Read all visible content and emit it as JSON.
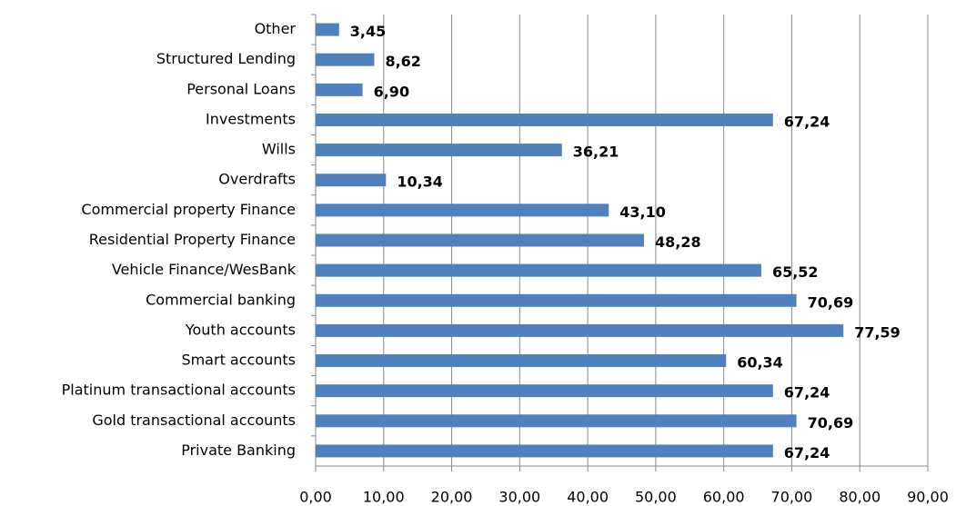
{
  "chart_data": {
    "type": "bar",
    "orientation": "horizontal",
    "categories": [
      "Other",
      "Structured Lending",
      "Personal Loans",
      "Investments",
      "Wills",
      "Overdrafts",
      "Commercial property Finance",
      "Residential Property Finance",
      "Vehicle Finance/WesBank",
      "Commercial banking",
      "Youth accounts",
      "Smart accounts",
      "Platinum transactional accounts",
      "Gold transactional accounts",
      "Private Banking"
    ],
    "values": [
      3.45,
      8.62,
      6.9,
      67.24,
      36.21,
      10.34,
      43.1,
      48.28,
      65.52,
      70.69,
      77.59,
      60.34,
      67.24,
      70.69,
      67.24
    ],
    "value_labels": [
      "3,45",
      "8,62",
      "6,90",
      "67,24",
      "36,21",
      "10,34",
      "43,10",
      "48,28",
      "65,52",
      "70,69",
      "77,59",
      "60,34",
      "67,24",
      "70,69",
      "67,24"
    ],
    "color": "#4f81bd",
    "xlim": [
      0,
      90
    ],
    "xticks": [
      {
        "value": 0,
        "label": "0,00"
      },
      {
        "value": 10,
        "label": "10,00"
      },
      {
        "value": 20,
        "label": "20,00"
      },
      {
        "value": 30,
        "label": "30,00"
      },
      {
        "value": 40,
        "label": "40,00"
      },
      {
        "value": 50,
        "label": "50,00"
      },
      {
        "value": 60,
        "label": "60,00"
      },
      {
        "value": 70,
        "label": "70,00"
      },
      {
        "value": 80,
        "label": "80,00"
      },
      {
        "value": 90,
        "label": "90,00"
      }
    ],
    "grid": true
  }
}
